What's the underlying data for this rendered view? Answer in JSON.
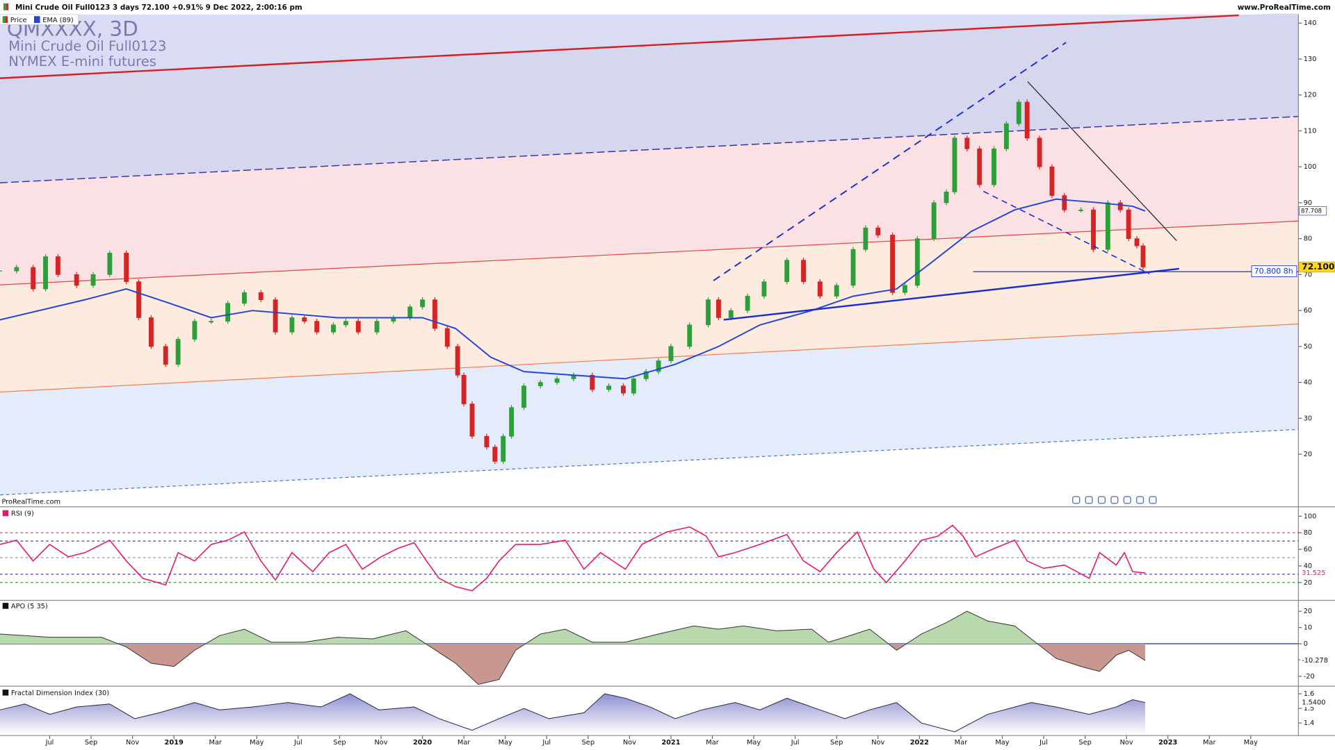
{
  "header": {
    "title": "Mini Crude Oil Full0123 3 days 72.100 +0.91% 9 Dec 2022, 2:00:16 pm",
    "site": "www.ProRealTime.com",
    "watermark_symbol": "QMXXXX, 3D",
    "watermark_name": "Mini Crude Oil Full0123",
    "watermark_exchange": "NYMEX E-mini futures",
    "footer_brand": "ProRealTime.com"
  },
  "x_axis": {
    "xlim": [
      -2.4,
      60.3
    ],
    "xticks": [
      {
        "value": 0,
        "label": "Jul"
      },
      {
        "value": 2,
        "label": "Sep"
      },
      {
        "value": 4,
        "label": "Nov"
      },
      {
        "value": 6,
        "label": "2019"
      },
      {
        "value": 8,
        "label": "Mar"
      },
      {
        "value": 10,
        "label": "May"
      },
      {
        "value": 12,
        "label": "Jul"
      },
      {
        "value": 14,
        "label": "Sep"
      },
      {
        "value": 16,
        "label": "Nov"
      },
      {
        "value": 18,
        "label": "2020"
      },
      {
        "value": 20,
        "label": "Mar"
      },
      {
        "value": 22,
        "label": "May"
      },
      {
        "value": 24,
        "label": "Jul"
      },
      {
        "value": 26,
        "label": "Sep"
      },
      {
        "value": 28,
        "label": "Nov"
      },
      {
        "value": 30,
        "label": "2021"
      },
      {
        "value": 32,
        "label": "Mar"
      },
      {
        "value": 34,
        "label": "May"
      },
      {
        "value": 36,
        "label": "Jul"
      },
      {
        "value": 38,
        "label": "Sep"
      },
      {
        "value": 40,
        "label": "Nov"
      },
      {
        "value": 42,
        "label": "2022"
      },
      {
        "value": 44,
        "label": "Mar"
      },
      {
        "value": 46,
        "label": "May"
      },
      {
        "value": 48,
        "label": "Jul"
      },
      {
        "value": 50,
        "label": "Sep"
      },
      {
        "value": 52,
        "label": "Nov"
      },
      {
        "value": 54,
        "label": "2023"
      },
      {
        "value": 56,
        "label": "Mar"
      },
      {
        "value": 58,
        "label": "May"
      }
    ]
  },
  "chart_data": [
    {
      "type": "candlestick",
      "ylim": [
        5.6,
        142.4
      ],
      "yticks": [
        20,
        30,
        40,
        50,
        60,
        70,
        80,
        90,
        100,
        110,
        120,
        130,
        140
      ],
      "level": {
        "value": 70.8,
        "label": "70.800 8h"
      },
      "series": [
        {
          "name": "Price",
          "type": "candlestick",
          "up_color": "#2e9e3a",
          "down_color": "#d42424",
          "last_label": "72.100",
          "x": [
            -2.4,
            -1.6,
            -0.8,
            -0.2,
            0.4,
            1.3,
            2.1,
            2.9,
            3.7,
            4.3,
            4.9,
            5.6,
            6.2,
            7.0,
            7.8,
            8.6,
            9.4,
            10.2,
            10.9,
            11.7,
            12.3,
            12.9,
            13.7,
            14.3,
            14.9,
            15.8,
            16.6,
            17.4,
            18.0,
            18.6,
            19.2,
            19.7,
            20.0,
            20.4,
            21.1,
            21.5,
            21.9,
            22.3,
            22.9,
            23.7,
            24.5,
            25.3,
            26.2,
            27.0,
            27.7,
            28.2,
            28.8,
            29.4,
            30.0,
            30.9,
            31.8,
            32.3,
            32.9,
            33.7,
            34.5,
            35.6,
            36.4,
            37.2,
            38.0,
            38.8,
            39.4,
            40.0,
            40.7,
            41.3,
            41.9,
            42.7,
            43.3,
            43.7,
            44.3,
            44.9,
            45.6,
            46.2,
            46.8,
            47.2,
            47.8,
            48.4,
            49.0,
            49.8,
            50.4,
            51.1,
            51.7,
            52.1,
            52.5,
            52.8
          ],
          "values": [
            71,
            72,
            66,
            75,
            70,
            67,
            70,
            76,
            68,
            58,
            50,
            45,
            52,
            57,
            57,
            62,
            65,
            63,
            54,
            58,
            57,
            54,
            56,
            57,
            54,
            57,
            58,
            61,
            63,
            55,
            50,
            42,
            34,
            25,
            22,
            18,
            25,
            33,
            39,
            40,
            41,
            42,
            38,
            39,
            37,
            41,
            43,
            46,
            50,
            56,
            63,
            58,
            60,
            64,
            68,
            74,
            68,
            64,
            67,
            77,
            83,
            81,
            65,
            67,
            80,
            90,
            93,
            108,
            105,
            95,
            105,
            112,
            118,
            108,
            100,
            92,
            88,
            88,
            77,
            90,
            88,
            80,
            78,
            72.1
          ]
        },
        {
          "name": "EMA (89)",
          "type": "line",
          "color": "#2246d8",
          "last_label": "87.708",
          "x": [
            -2.4,
            1.7,
            3.7,
            5.8,
            7.8,
            9.8,
            13.9,
            18.0,
            19.6,
            21.3,
            22.9,
            25.3,
            27.8,
            30.2,
            32.3,
            34.3,
            36.8,
            38.8,
            40.9,
            42.5,
            44.5,
            46.6,
            48.6,
            50.7,
            52.3,
            52.9
          ],
          "values": [
            57.4,
            63,
            66,
            62,
            58,
            60,
            58,
            58,
            55,
            47,
            43,
            42,
            41,
            45,
            50,
            56,
            60,
            64,
            66,
            73,
            82,
            88,
            91,
            90,
            89,
            87.708
          ]
        }
      ]
    },
    {
      "type": "line",
      "ylim": [
        -0.5,
        110.3
      ],
      "yticks": [
        20,
        40,
        60,
        80,
        100
      ],
      "levels": [
        {
          "value": 80,
          "color": "#e03030"
        },
        {
          "value": 70,
          "color": "#3040c0"
        },
        {
          "value": 50,
          "color": "#999999"
        },
        {
          "value": 30,
          "color": "#3040c0"
        },
        {
          "value": 20,
          "color": "#30a030"
        }
      ],
      "series": [
        {
          "name": "RSI (9)",
          "color": "#e8186c",
          "last_label": "31.525",
          "x": [
            -2.4,
            -1.6,
            -0.8,
            0.0,
            0.9,
            1.7,
            2.9,
            3.7,
            4.5,
            5.6,
            6.2,
            7.0,
            7.8,
            8.6,
            9.4,
            10.2,
            10.9,
            11.7,
            12.7,
            13.5,
            14.3,
            15.1,
            16.0,
            16.8,
            17.6,
            18.2,
            18.8,
            19.6,
            20.4,
            21.1,
            21.7,
            22.5,
            23.7,
            24.9,
            25.8,
            26.6,
            27.8,
            28.6,
            29.8,
            30.9,
            31.7,
            32.3,
            33.1,
            34.3,
            35.6,
            36.4,
            37.2,
            38.0,
            39.0,
            39.8,
            40.4,
            41.3,
            42.1,
            42.9,
            43.6,
            44.1,
            44.7,
            45.6,
            46.6,
            47.2,
            48.0,
            49.0,
            50.2,
            50.7,
            51.5,
            51.9,
            52.3,
            52.9
          ],
          "values": [
            66,
            71,
            46,
            66,
            51,
            56,
            71,
            46,
            25,
            17,
            56,
            46,
            66,
            71,
            81,
            46,
            23,
            56,
            33,
            56,
            66,
            36,
            51,
            61,
            68,
            46,
            25,
            15,
            10,
            25,
            46,
            66,
            66,
            71,
            36,
            56,
            36,
            66,
            81,
            87,
            76,
            51,
            56,
            66,
            78,
            46,
            33,
            56,
            81,
            36,
            20,
            46,
            71,
            76,
            89,
            76,
            51,
            61,
            71,
            46,
            37,
            41,
            25,
            56,
            41,
            56,
            33,
            31.525
          ]
        }
      ]
    },
    {
      "type": "area",
      "ylim": [
        -25.6,
        26.2
      ],
      "yticks": [
        -20,
        -10,
        0,
        10,
        20
      ],
      "series": [
        {
          "name": "APO (5 35)",
          "color": "#333333",
          "pos_fill": "#b8d8ae",
          "neg_fill": "#c89890",
          "last_label": "-10.278",
          "x": [
            -2.4,
            0.0,
            2.5,
            3.7,
            4.9,
            6.0,
            7.0,
            8.2,
            9.4,
            10.7,
            12.3,
            13.9,
            15.6,
            17.2,
            18.4,
            19.6,
            20.7,
            21.7,
            22.5,
            23.7,
            24.9,
            26.2,
            27.8,
            29.4,
            31.1,
            32.3,
            33.5,
            35.1,
            36.8,
            37.6,
            38.4,
            39.6,
            40.9,
            42.1,
            43.3,
            44.3,
            45.3,
            46.6,
            47.6,
            48.6,
            49.8,
            50.7,
            51.5,
            52.1,
            52.9
          ],
          "values": [
            6,
            4,
            4,
            -2,
            -12,
            -14,
            -4,
            5,
            9,
            1,
            1,
            4,
            3,
            8,
            -2,
            -12,
            -25,
            -22,
            -4,
            6,
            9,
            1,
            1,
            6,
            11,
            9,
            11,
            8,
            9,
            1,
            4,
            9,
            -4,
            6,
            13,
            20,
            14,
            11,
            1,
            -9,
            -14,
            -17,
            -7,
            -4,
            -10.278
          ]
        }
      ]
    },
    {
      "type": "area",
      "ylim": [
        1.32,
        1.646
      ],
      "yticks": [
        1.4,
        1.5,
        1.6
      ],
      "series": [
        {
          "name": "Fractal Dimension Index (30)",
          "color": "#222244",
          "fill": "#8f90d0",
          "last_label": "1.5400",
          "x": [
            -2.4,
            -1.2,
            0.0,
            1.3,
            2.9,
            4.1,
            5.3,
            7.0,
            8.2,
            9.8,
            11.5,
            13.1,
            14.5,
            15.9,
            17.6,
            18.8,
            20.4,
            21.7,
            22.9,
            24.1,
            25.8,
            26.8,
            27.8,
            29.0,
            30.2,
            31.5,
            33.1,
            34.3,
            35.6,
            36.8,
            38.4,
            39.6,
            40.9,
            42.1,
            43.7,
            45.3,
            47.4,
            48.6,
            50.2,
            51.5,
            52.3,
            52.9
          ],
          "values": [
            1.49,
            1.53,
            1.46,
            1.51,
            1.53,
            1.43,
            1.47,
            1.54,
            1.49,
            1.51,
            1.54,
            1.51,
            1.6,
            1.49,
            1.51,
            1.43,
            1.35,
            1.43,
            1.5,
            1.43,
            1.47,
            1.6,
            1.57,
            1.51,
            1.43,
            1.49,
            1.54,
            1.49,
            1.57,
            1.51,
            1.43,
            1.49,
            1.54,
            1.4,
            1.34,
            1.46,
            1.54,
            1.51,
            1.46,
            1.51,
            1.56,
            1.54
          ]
        }
      ]
    }
  ]
}
